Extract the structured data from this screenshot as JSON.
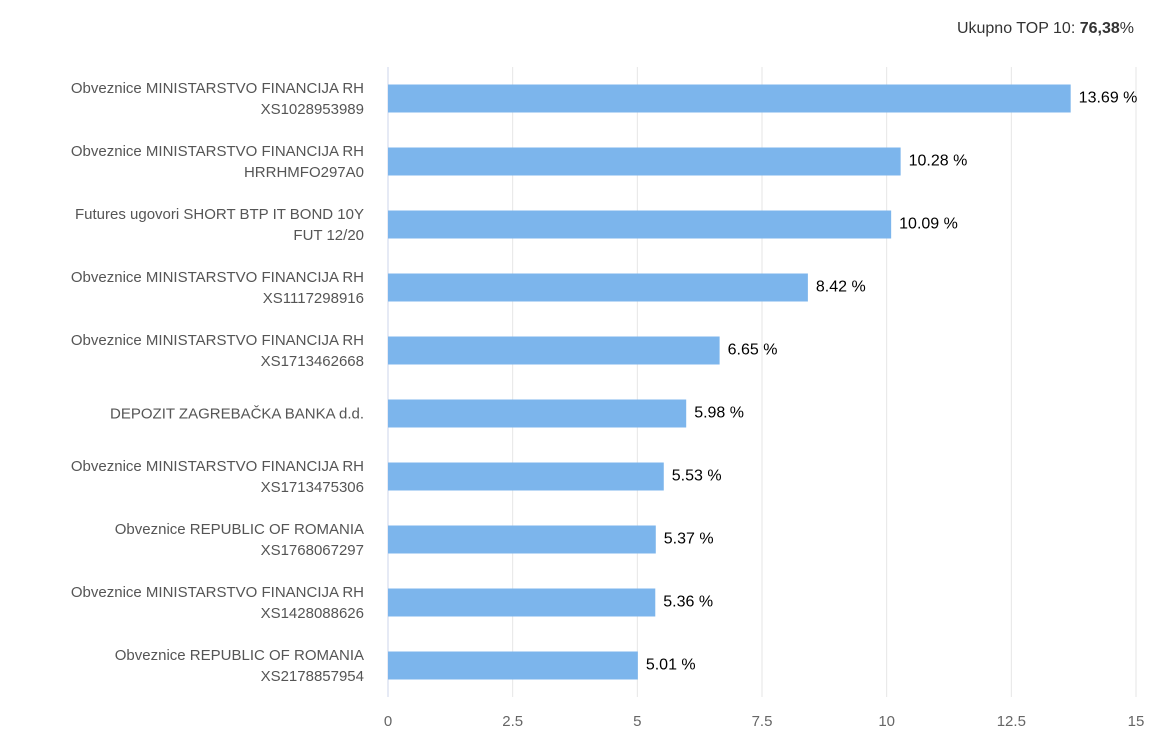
{
  "chart_data": {
    "type": "bar",
    "orientation": "horizontal",
    "total_label": "Ukupno TOP 10:",
    "total_value": "76,38",
    "total_unit": "%",
    "categories": [
      "Obveznice MINISTARSTVO FINANCIJA RH\nXS1028953989",
      "Obveznice MINISTARSTVO FINANCIJA RH\nHRRHMFO297A0",
      "Futures ugovori SHORT BTP IT BOND 10Y\nFUT 12/20",
      "Obveznice MINISTARSTVO FINANCIJA RH\nXS1117298916",
      "Obveznice MINISTARSTVO FINANCIJA RH\nXS1713462668",
      "DEPOZIT ZAGREBAČKA BANKA d.d.",
      "Obveznice MINISTARSTVO FINANCIJA RH\nXS1713475306",
      "Obveznice REPUBLIC OF ROMANIA\nXS1768067297",
      "Obveznice MINISTARSTVO FINANCIJA RH\nXS1428088626",
      "Obveznice REPUBLIC OF ROMANIA\nXS2178857954"
    ],
    "values": [
      13.69,
      10.28,
      10.09,
      8.42,
      6.65,
      5.98,
      5.53,
      5.37,
      5.36,
      5.01
    ],
    "value_labels": [
      "13.69 %",
      "10.28 %",
      "10.09 %",
      "8.42 %",
      "6.65 %",
      "5.98 %",
      "5.53 %",
      "5.37 %",
      "5.36 %",
      "5.01 %"
    ],
    "color": "#7cb5ec",
    "xlim": [
      0,
      15
    ],
    "xticks": [
      0,
      2.5,
      5,
      7.5,
      10,
      12.5,
      15
    ],
    "grid": true
  }
}
